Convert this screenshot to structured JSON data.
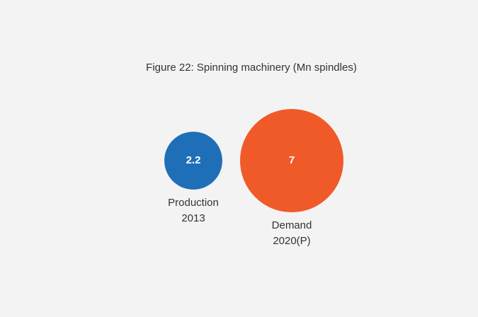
{
  "chart_data": {
    "type": "bubble",
    "title": "Figure 22: Spinning machinery (Mn spindles)",
    "categories": [
      [
        "Production",
        "2013"
      ],
      [
        "Demand",
        "2020(P)"
      ]
    ],
    "values": [
      2.2,
      7
    ],
    "colors": [
      "#1f6fb8",
      "#f05a28"
    ]
  }
}
